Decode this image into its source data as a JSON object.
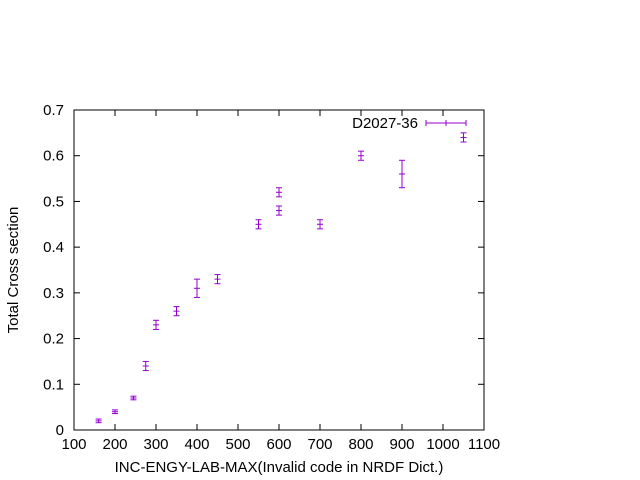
{
  "chart_data": {
    "type": "scatter",
    "title": "",
    "xlabel": "INC-ENGY-LAB-MAX(Invalid code in NRDF Dict.)",
    "ylabel": "Total Cross section",
    "xlim": [
      100,
      1100
    ],
    "ylim": [
      0,
      0.7
    ],
    "xticks": [
      100,
      200,
      300,
      400,
      500,
      600,
      700,
      800,
      900,
      1000,
      1100
    ],
    "yticks": [
      0,
      0.1,
      0.2,
      0.3,
      0.4,
      0.5,
      0.6,
      0.7
    ],
    "grid": false,
    "legend_position": "top-right",
    "series": [
      {
        "name": "D2027-36",
        "color": "#9400d3",
        "style": "errorbars",
        "points": [
          {
            "x": 160,
            "y": 0.02,
            "yerr": 0.004
          },
          {
            "x": 200,
            "y": 0.04,
            "yerr": 0.004
          },
          {
            "x": 245,
            "y": 0.07,
            "yerr": 0.004
          },
          {
            "x": 275,
            "y": 0.14,
            "yerr": 0.01
          },
          {
            "x": 300,
            "y": 0.23,
            "yerr": 0.01
          },
          {
            "x": 350,
            "y": 0.26,
            "yerr": 0.01
          },
          {
            "x": 400,
            "y": 0.31,
            "yerr": 0.02
          },
          {
            "x": 450,
            "y": 0.33,
            "yerr": 0.01
          },
          {
            "x": 550,
            "y": 0.45,
            "yerr": 0.01
          },
          {
            "x": 600,
            "y": 0.48,
            "yerr": 0.01
          },
          {
            "x": 600,
            "y": 0.52,
            "yerr": 0.01
          },
          {
            "x": 700,
            "y": 0.45,
            "yerr": 0.01
          },
          {
            "x": 800,
            "y": 0.6,
            "yerr": 0.01
          },
          {
            "x": 900,
            "y": 0.56,
            "yerr": 0.03
          },
          {
            "x": 1050,
            "y": 0.64,
            "yerr": 0.01
          }
        ]
      }
    ]
  }
}
